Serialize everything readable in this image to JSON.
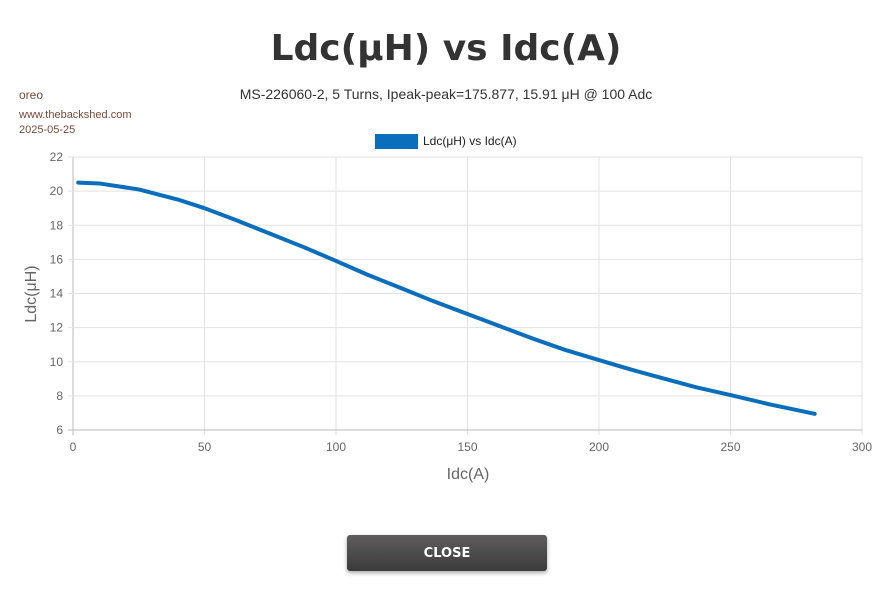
{
  "header": {
    "title": "Ldc(μH) vs Idc(A)",
    "subtitle": "MS-226060-2, 5 Turns, Ipeak-peak=175.877, 15.91 μH @ 100 Adc",
    "author": "oreo",
    "site": "www.thebackshed.com",
    "date": "2025-05-25"
  },
  "chart_data": {
    "type": "line",
    "xlabel": "Idc(A)",
    "ylabel": "Ldc(μH)",
    "xlim": [
      0,
      300
    ],
    "ylim": [
      6,
      22
    ],
    "xticks": [
      0,
      50,
      100,
      150,
      200,
      250,
      300
    ],
    "yticks": [
      6,
      8,
      10,
      12,
      14,
      16,
      18,
      20,
      22
    ],
    "grid": true,
    "legend": "top",
    "series": [
      {
        "name": "Ldc(μH) vs Idc(A)",
        "color": "#0a6ebd",
        "x": [
          2,
          10,
          25,
          40,
          50,
          62,
          75,
          88,
          100,
          112,
          125,
          137,
          150,
          162,
          175,
          187,
          200,
          212,
          225,
          237,
          250,
          265,
          282
        ],
        "y": [
          20.5,
          20.45,
          20.1,
          19.5,
          19.0,
          18.3,
          17.5,
          16.7,
          15.91,
          15.1,
          14.3,
          13.55,
          12.8,
          12.1,
          11.35,
          10.7,
          10.1,
          9.55,
          9.0,
          8.5,
          8.05,
          7.5,
          6.95
        ]
      }
    ]
  },
  "footer": {
    "close_label": "CLOSE"
  }
}
